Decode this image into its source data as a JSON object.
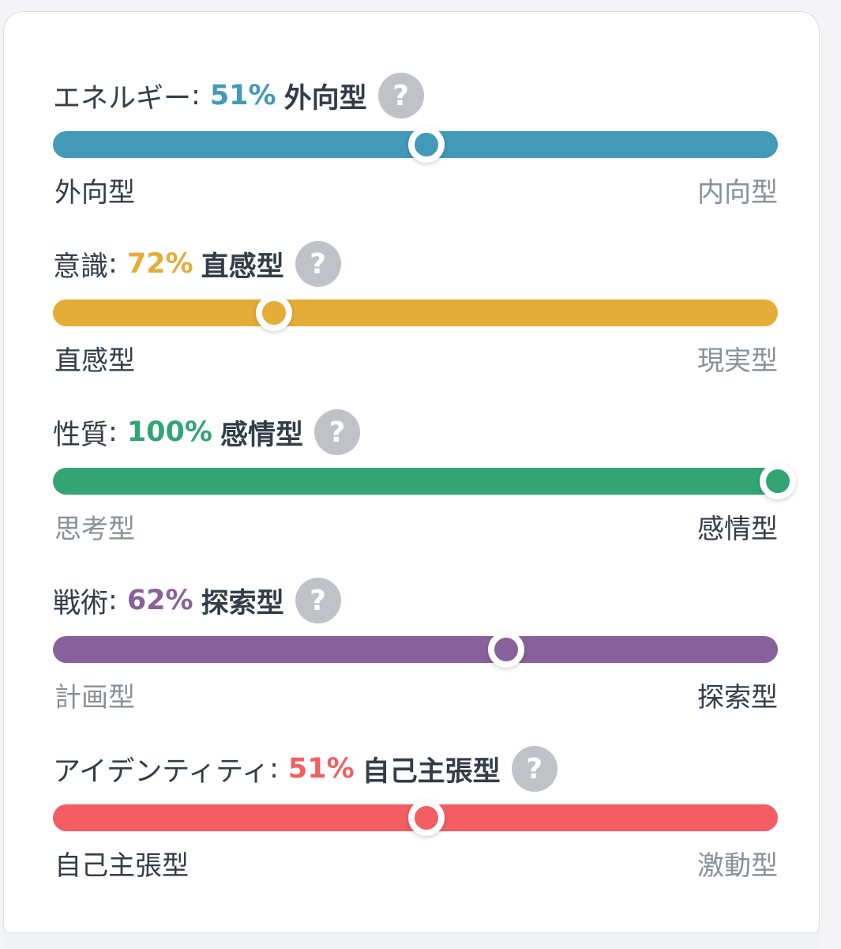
{
  "traits": [
    {
      "label": "エネルギー",
      "percent": "51%",
      "value": 51,
      "type": "外向型",
      "color": "#4299b8",
      "left": "外向型",
      "right": "内向型",
      "active_side": "left",
      "position": 0.515
    },
    {
      "label": "意識",
      "percent": "72%",
      "value": 72,
      "type": "直感型",
      "color": "#e3ad37",
      "left": "直感型",
      "right": "現実型",
      "active_side": "left",
      "position": 0.305
    },
    {
      "label": "性質",
      "percent": "100%",
      "value": 100,
      "type": "感情型",
      "color": "#33a474",
      "left": "思考型",
      "right": "感情型",
      "active_side": "right",
      "position": 1.0
    },
    {
      "label": "戦術",
      "percent": "62%",
      "value": 62,
      "type": "探索型",
      "color": "#88619a",
      "left": "計画型",
      "right": "探索型",
      "active_side": "right",
      "position": 0.625
    },
    {
      "label": "アイデンティティ",
      "percent": "51%",
      "value": 51,
      "type": "自己主張型",
      "color": "#f25e62",
      "left": "自己主張型",
      "right": "激動型",
      "active_side": "left",
      "position": 0.515
    }
  ],
  "separator": ":",
  "help_glyph": "?",
  "colors": {
    "text_active": "#343c48",
    "text_inactive": "#8a8f98",
    "help_bg": "#c0c2c8"
  }
}
